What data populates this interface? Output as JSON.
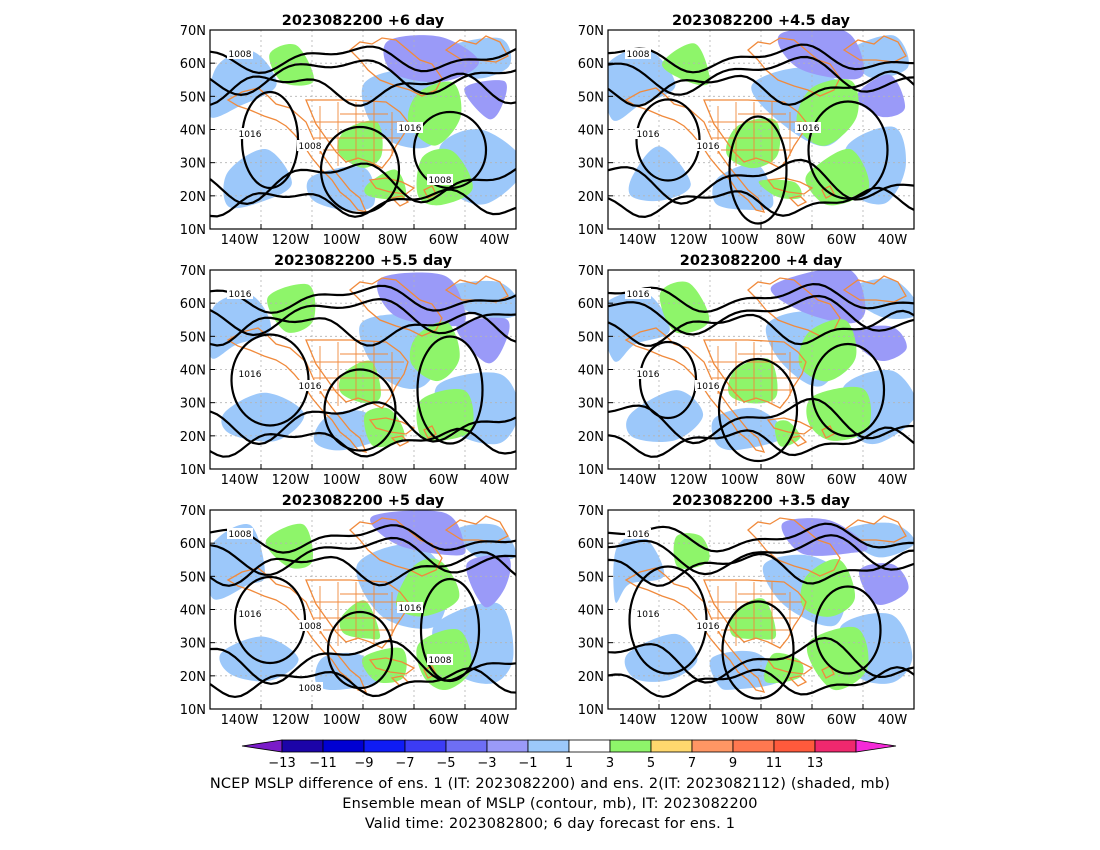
{
  "panels": [
    {
      "title": "2023082200  +6 day",
      "shaded": "6.0"
    },
    {
      "title": "2023082200  +4.5 day",
      "shaded": "4.5"
    },
    {
      "title": "2023082200  +5.5 day",
      "shaded": "5.5"
    },
    {
      "title": "2023082200  +4 day",
      "shaded": "4.0"
    },
    {
      "title": "2023082200  +5 day",
      "shaded": "5.0"
    },
    {
      "title": "2023082200  +3.5 day",
      "shaded": "3.5"
    }
  ],
  "axes": {
    "lat_labels": [
      "70N",
      "60N",
      "50N",
      "40N",
      "30N",
      "20N",
      "10N"
    ],
    "lon_labels": [
      "140W",
      "120W",
      "100W",
      "80W",
      "60W",
      "40W"
    ]
  },
  "contour_labels": {
    "p0": [
      "1008",
      "1016",
      "1008",
      "1016",
      "1008"
    ],
    "p1": [
      "1008",
      "1016",
      "1016",
      "1016"
    ],
    "p2": [
      "1016",
      "1016",
      "1016"
    ],
    "p3": [
      "1016",
      "1016",
      "1016"
    ],
    "p4": [
      "1008",
      "1016",
      "1008",
      "1016",
      "1008",
      "1008"
    ],
    "p5": [
      "1016",
      "1016",
      "1016"
    ]
  },
  "colorbar": {
    "labels": [
      "-13",
      "-11",
      "-9",
      "-7",
      "-5",
      "-3",
      "-1",
      "1",
      "3",
      "5",
      "7",
      "9",
      "11",
      "13"
    ],
    "colors": [
      "#1c04a8",
      "#0000d2",
      "#0f1cf5",
      "#3c3cf5",
      "#6e6ef5",
      "#9a9af8",
      "#9cc8fa",
      "#ffffff",
      "#8ef56a",
      "#ffd86e",
      "#ff9664",
      "#ff7850",
      "#ff5a3c",
      "#f0286e"
    ],
    "low_tri": "#7a1cc8",
    "high_tri": "#f52ad8"
  },
  "colors": {
    "land_outline": "#f08a3c",
    "contour": "#000000",
    "blue_fill": "#9cc8fa",
    "green_fill": "#8ef56a",
    "purple_fill": "#9a9af8",
    "grid": "#b4b4b4"
  },
  "captions": {
    "line1": "NCEP MSLP difference of ens. 1 (IT: 2023082200) and ens. 2(IT: 2023082112) (shaded, mb)",
    "line2": "Ensemble mean of MSLP (contour, mb), IT: 2023082200",
    "line3": "Valid time: 2023082800; 6 day forecast for ens. 1"
  }
}
